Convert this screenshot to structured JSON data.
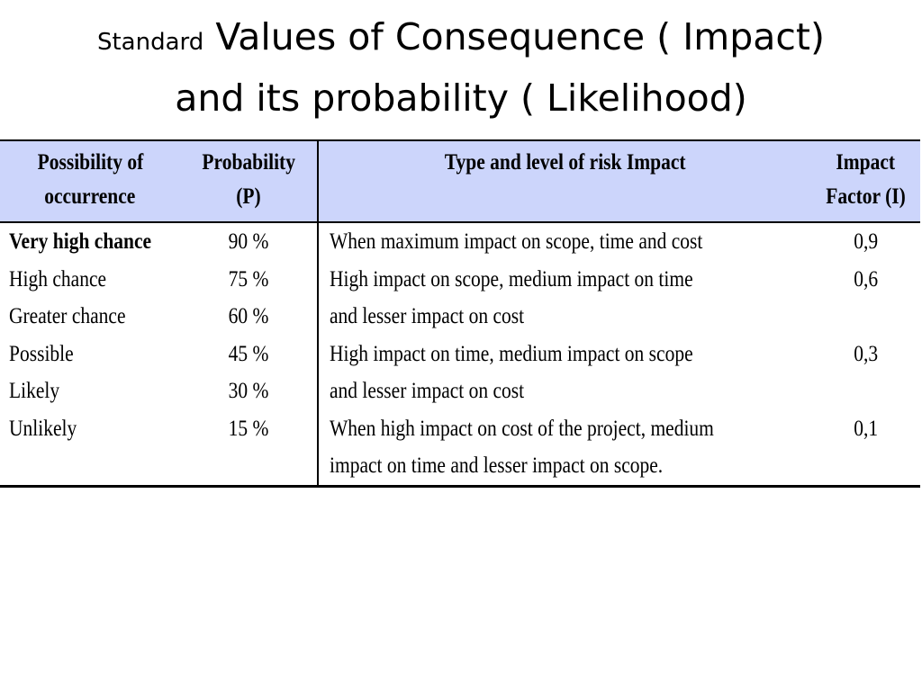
{
  "title": {
    "small_word": "Standard",
    "line1_rest": "Values of Consequence ( Impact)",
    "line2": "and its probability ( Likelihood)"
  },
  "table": {
    "headers": {
      "possibility": [
        "Possibility of",
        "occurrence"
      ],
      "probability": [
        "Probability",
        "(P)"
      ],
      "type": [
        "Type and level of risk Impact"
      ],
      "factor": [
        "Impact",
        "Factor (I)"
      ]
    },
    "possibility": [
      "Very high chance",
      "High chance",
      "Greater chance",
      "Possible",
      "Likely",
      "Unlikely"
    ],
    "probability": [
      "90 %",
      "75 %",
      "60 %",
      "45 %",
      "30 %",
      "15 %"
    ],
    "impact_type_lines": [
      "When maximum impact on scope, time and cost",
      "High impact on scope, medium impact on time",
      "and lesser impact on cost",
      "High impact on time, medium impact on scope",
      "and lesser impact on cost",
      "When high impact on cost of the project, medium",
      "impact on time and lesser impact on scope."
    ],
    "impact_factor_lines": [
      "0,9",
      "0,6",
      "",
      "0,3",
      "",
      "0,1",
      ""
    ]
  }
}
